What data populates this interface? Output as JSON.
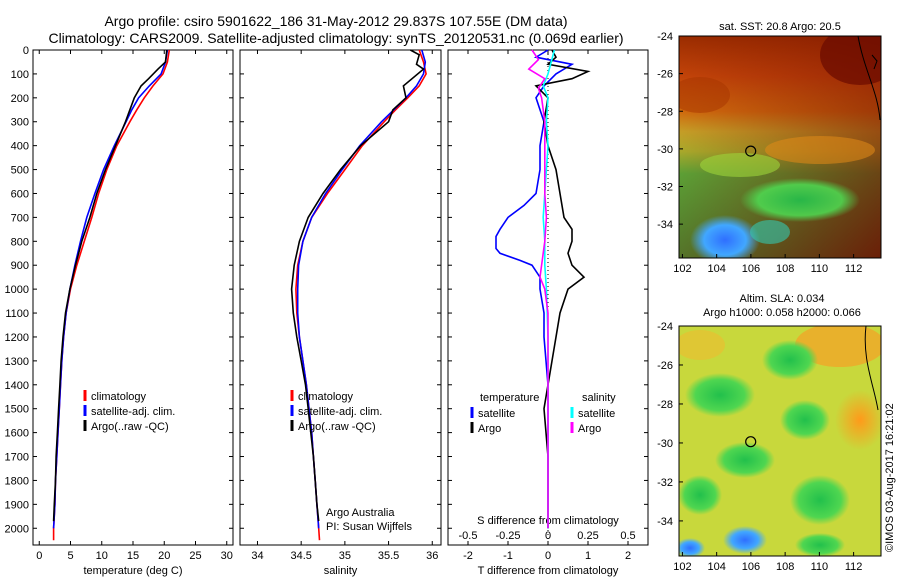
{
  "header": {
    "line1": "Argo profile: csiro 5901622_186 31-May-2012 29.837S 107.55E (DM data)",
    "line2": "Climatology: CARS2009. Satellite-adjusted climatology: synTS_20120531.nc (0.069d earlier)"
  },
  "colors": {
    "climatology": "#ff0000",
    "satellite": "#0000ff",
    "argo": "#000000",
    "salinity_satellite": "#00ffff",
    "salinity_argo": "#ff00ff"
  },
  "chart_data": [
    {
      "type": "line",
      "xlabel": "temperature (deg C)",
      "ylabel": "",
      "xlim": [
        -1,
        31
      ],
      "ylim": [
        2070,
        0
      ],
      "xticks": [
        0,
        5,
        10,
        15,
        20,
        25,
        30
      ],
      "yticks": [
        0,
        100,
        200,
        300,
        400,
        500,
        600,
        700,
        800,
        900,
        1000,
        1100,
        1200,
        1300,
        1400,
        1500,
        1600,
        1700,
        1800,
        1900,
        2000
      ],
      "legend": {
        "position": "lower-center",
        "entries": [
          "climatology",
          "satellite-adj. clim.",
          "Argo(..raw -QC)"
        ]
      },
      "series": [
        {
          "name": "climatology",
          "color": "#ff0000",
          "depth": [
            0,
            50,
            100,
            150,
            200,
            250,
            300,
            400,
            500,
            600,
            700,
            800,
            900,
            1000,
            1100,
            1200,
            1300,
            1400,
            1500,
            1600,
            1700,
            1800,
            1900,
            2000,
            2050
          ],
          "values": [
            20.8,
            20.5,
            19.8,
            18.2,
            16.8,
            15.6,
            14.5,
            12.4,
            10.8,
            9.5,
            8.4,
            7.2,
            6.0,
            5.0,
            4.3,
            3.9,
            3.6,
            3.4,
            3.2,
            3.0,
            2.8,
            2.6,
            2.5,
            2.3,
            2.3
          ]
        },
        {
          "name": "satellite-adj. clim.",
          "color": "#0000ff",
          "depth": [
            0,
            50,
            100,
            150,
            200,
            250,
            300,
            400,
            500,
            600,
            700,
            800,
            900,
            1000,
            1100,
            1200,
            1300,
            1400,
            1500,
            1600,
            1700,
            1800,
            1900,
            2000
          ],
          "values": [
            20.5,
            20.2,
            19.5,
            17.6,
            15.9,
            14.8,
            13.9,
            12.0,
            10.3,
            8.9,
            7.6,
            6.6,
            5.7,
            4.9,
            4.3,
            3.9,
            3.6,
            3.4,
            3.2,
            3.0,
            2.8,
            2.6,
            2.5,
            2.3
          ]
        },
        {
          "name": "Argo(..raw -QC)",
          "color": "#000000",
          "depth": [
            0,
            50,
            80,
            120,
            150,
            200,
            300,
            400,
            500,
            600,
            700,
            800,
            900,
            1000,
            1100,
            1200,
            1300,
            1400,
            1500,
            1600,
            1700,
            1800,
            1900,
            1970
          ],
          "values": [
            20.4,
            20.2,
            19.0,
            17.5,
            16.3,
            15.2,
            13.8,
            12.2,
            10.6,
            9.2,
            8.1,
            6.8,
            5.8,
            4.9,
            4.2,
            3.8,
            3.5,
            3.3,
            3.1,
            2.9,
            2.7,
            2.6,
            2.4,
            2.3
          ]
        }
      ]
    },
    {
      "type": "line",
      "xlabel": "salinity",
      "ylabel": "",
      "xlim": [
        33.8,
        36.1
      ],
      "ylim": [
        2070,
        0
      ],
      "xticks": [
        34,
        34.5,
        35,
        35.5,
        36
      ],
      "legend": {
        "position": "lower-center",
        "entries": [
          "climatology",
          "satellite-adj. clim.",
          "Argo(..raw -QC)"
        ]
      },
      "annotations": [
        "Argo Australia",
        "PI: Susan Wijffels"
      ],
      "series": [
        {
          "name": "climatology",
          "color": "#ff0000",
          "depth": [
            0,
            50,
            100,
            150,
            200,
            250,
            300,
            400,
            500,
            600,
            700,
            800,
            900,
            1000,
            1100,
            1200,
            1300,
            1400,
            1500,
            1600,
            1700,
            1800,
            1900,
            2000,
            2050
          ],
          "values": [
            35.85,
            35.9,
            35.93,
            35.85,
            35.72,
            35.58,
            35.45,
            35.2,
            35.0,
            34.8,
            34.62,
            34.52,
            34.46,
            34.44,
            34.45,
            34.48,
            34.52,
            34.56,
            34.59,
            34.62,
            34.64,
            34.66,
            34.68,
            34.7,
            34.71
          ]
        },
        {
          "name": "satellite-adj. clim.",
          "color": "#0000ff",
          "depth": [
            0,
            50,
            100,
            150,
            200,
            250,
            300,
            400,
            500,
            600,
            700,
            800,
            900,
            1000,
            1100,
            1200,
            1300,
            1400,
            1500,
            1600,
            1700,
            1800,
            1900,
            2000
          ],
          "values": [
            35.88,
            35.92,
            35.9,
            35.82,
            35.7,
            35.56,
            35.42,
            35.17,
            34.97,
            34.78,
            34.62,
            34.52,
            34.47,
            34.46,
            34.46,
            34.48,
            34.52,
            34.56,
            34.59,
            34.62,
            34.64,
            34.66,
            34.68,
            34.7
          ]
        },
        {
          "name": "Argo(..raw -QC)",
          "color": "#000000",
          "depth": [
            0,
            20,
            60,
            80,
            150,
            200,
            250,
            300,
            400,
            500,
            600,
            700,
            800,
            900,
            1000,
            1100,
            1200,
            1300,
            1400,
            1500,
            1600,
            1700,
            1800,
            1900,
            1970
          ],
          "values": [
            35.75,
            35.85,
            35.82,
            35.9,
            35.67,
            35.7,
            35.55,
            35.5,
            35.18,
            34.95,
            34.75,
            34.58,
            34.48,
            34.42,
            34.39,
            34.41,
            34.45,
            34.5,
            34.55,
            34.58,
            34.61,
            34.64,
            34.66,
            34.68,
            34.7
          ]
        }
      ]
    },
    {
      "type": "line",
      "xlabel": "T difference from climatology",
      "xlabel_top": "S difference from climatology",
      "ylabel": "",
      "xlim": [
        -2.5,
        2.5
      ],
      "ylim": [
        2070,
        0
      ],
      "xticks": [
        -2,
        -1,
        0,
        1,
        2
      ],
      "xticks_top": [
        "-0.5",
        "-0.25",
        "0",
        "0.25",
        "0.5"
      ],
      "legend": {
        "position": "lower-center",
        "headers": [
          "temperature",
          "salinity"
        ],
        "entries": [
          "satellite",
          "Argo",
          "satellite",
          "Argo"
        ]
      },
      "series": [
        {
          "name": "satellite",
          "variable": "temperature",
          "color": "#0000ff",
          "depth": [
            0,
            30,
            60,
            100,
            150,
            200,
            300,
            400,
            500,
            600,
            650,
            700,
            750,
            780,
            800,
            830,
            850,
            880,
            900,
            950,
            1000,
            1100,
            1200,
            1400,
            1600,
            1800,
            2000
          ],
          "values": [
            0.0,
            -0.3,
            0.6,
            0.2,
            -0.1,
            -0.3,
            -0.1,
            -0.2,
            -0.2,
            -0.3,
            -0.6,
            -1.0,
            -1.2,
            -1.3,
            -1.3,
            -1.3,
            -1.2,
            -0.7,
            -0.4,
            -0.2,
            -0.2,
            -0.1,
            -0.1,
            0.0,
            0.0,
            0.0,
            0.0
          ]
        },
        {
          "name": "Argo",
          "variable": "temperature",
          "color": "#000000",
          "depth": [
            0,
            30,
            60,
            90,
            120,
            150,
            200,
            300,
            400,
            500,
            600,
            700,
            750,
            800,
            850,
            900,
            950,
            1000,
            1100,
            1200,
            1300,
            1400,
            1500,
            1700,
            1900,
            2000
          ],
          "values": [
            0.1,
            0.2,
            0.0,
            1.0,
            0.6,
            -0.3,
            0.0,
            -0.1,
            0.0,
            0.2,
            0.3,
            0.4,
            0.6,
            0.6,
            0.5,
            0.6,
            0.9,
            0.5,
            0.3,
            0.2,
            0.1,
            0.0,
            -0.1,
            0.0,
            0.0,
            0.0
          ]
        },
        {
          "name": "satellite",
          "variable": "salinity",
          "color": "#00ffff",
          "depth": [
            0,
            50,
            100,
            150,
            200,
            300,
            400,
            500,
            600,
            700,
            800,
            900,
            1000,
            1200,
            1500,
            1800,
            2000
          ],
          "values": [
            0.04,
            0.02,
            0.0,
            -0.03,
            0.0,
            -0.01,
            0.0,
            -0.01,
            -0.02,
            -0.03,
            -0.02,
            -0.02,
            -0.01,
            0.0,
            0.0,
            0.0,
            0.0
          ]
        },
        {
          "name": "Argo",
          "variable": "salinity",
          "color": "#ff00ff",
          "depth": [
            0,
            40,
            80,
            120,
            160,
            200,
            300,
            400,
            500,
            600,
            700,
            800,
            900,
            950,
            1000,
            1100,
            1200,
            1400,
            1600,
            1800,
            2000
          ],
          "values": [
            -0.1,
            -0.06,
            -0.12,
            -0.02,
            -0.06,
            -0.04,
            -0.02,
            -0.02,
            -0.02,
            -0.02,
            -0.01,
            -0.02,
            -0.04,
            -0.05,
            -0.02,
            0.0,
            0.0,
            0.0,
            0.0,
            0.0,
            0.0
          ]
        }
      ]
    },
    {
      "type": "heatmap",
      "title": "sat. SST: 20.8  Argo: 20.5",
      "xlim": [
        101.8,
        113.6
      ],
      "ylim": [
        -35.8,
        -24
      ],
      "xticks": [
        102,
        104,
        106,
        108,
        110,
        112
      ],
      "yticks": [
        -24,
        -26,
        -28,
        -30,
        -32,
        -34
      ],
      "marker": {
        "lon": 107.55,
        "lat": -29.837
      }
    },
    {
      "type": "heatmap",
      "title": "Altim. SLA: 0.034",
      "subtitle": "Argo h1000: 0.058 h2000: 0.066",
      "xlim": [
        101.8,
        113.6
      ],
      "ylim": [
        -35.8,
        -24
      ],
      "xticks": [
        102,
        104,
        106,
        108,
        110,
        112
      ],
      "yticks": [
        -24,
        -26,
        -28,
        -30,
        -32,
        -34
      ],
      "marker": {
        "lon": 107.55,
        "lat": -29.837
      }
    }
  ],
  "credit": "©IMOS 03-Aug-2017 16:21:02"
}
